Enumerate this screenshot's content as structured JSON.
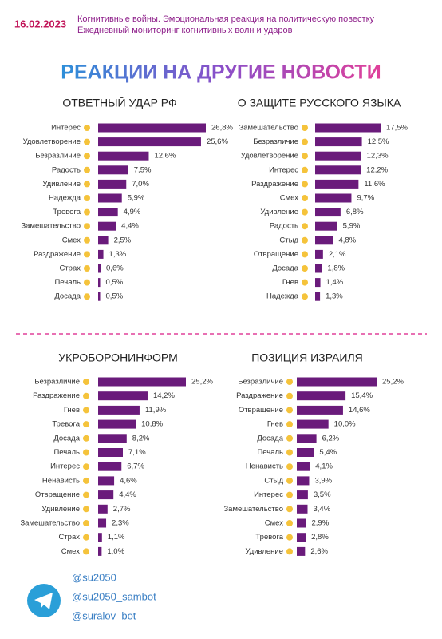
{
  "header": {
    "date": "16.02.2023",
    "lines": [
      "Когнитивные войны. Эмоциональная реакция на политическую повестку",
      "Ежедневный мониторинг когнитивных волн и ударов"
    ]
  },
  "title": "РЕАКЦИИ НА ДРУГИЕ НОВОСТИ",
  "chart_data": [
    {
      "type": "bar",
      "orientation": "horizontal",
      "title": "ОТВЕТНЫЙ УДАР РФ",
      "color": "#6a1b7b",
      "categories": [
        "Интерес",
        "Удовлетворение",
        "Безразличие",
        "Радость",
        "Удивление",
        "Надежда",
        "Тревога",
        "Замешательство",
        "Смех",
        "Раздражение",
        "Страх",
        "Печаль",
        "Досада"
      ],
      "values": [
        26.8,
        25.6,
        12.6,
        7.5,
        7.0,
        5.9,
        4.9,
        4.4,
        2.5,
        1.3,
        0.6,
        0.5,
        0.5
      ],
      "value_labels": [
        "26,8%",
        "25,6%",
        "12,6%",
        "7,5%",
        "7,0%",
        "5,9%",
        "4,9%",
        "4,4%",
        "2,5%",
        "1,3%",
        "0,6%",
        "0,5%",
        "0,5%"
      ]
    },
    {
      "type": "bar",
      "orientation": "horizontal",
      "title": "О ЗАЩИТЕ РУССКОГО ЯЗЫКА",
      "color": "#6a1b7b",
      "categories": [
        "Замешательство",
        "Безразличие",
        "Удовлетворение",
        "Интерес",
        "Раздражение",
        "Смех",
        "Удивление",
        "Радость",
        "Стыд",
        "Отвращение",
        "Досада",
        "Гнев",
        "Надежда"
      ],
      "values": [
        17.5,
        12.5,
        12.3,
        12.2,
        11.6,
        9.7,
        6.8,
        5.9,
        4.8,
        2.1,
        1.8,
        1.4,
        1.3
      ],
      "value_labels": [
        "17,5%",
        "12,5%",
        "12,3%",
        "12,2%",
        "11,6%",
        "9,7%",
        "6,8%",
        "5,9%",
        "4,8%",
        "2,1%",
        "1,8%",
        "1,4%",
        "1,3%"
      ]
    },
    {
      "type": "bar",
      "orientation": "horizontal",
      "title": "УКРОБОРОНИНФОРМ",
      "color": "#6a1b7b",
      "categories": [
        "Безразличие",
        "Раздражение",
        "Гнев",
        "Тревога",
        "Досада",
        "Печаль",
        "Интерес",
        "Ненависть",
        "Отвращение",
        "Удивление",
        "Замешательство",
        "Страх",
        "Смех"
      ],
      "values": [
        25.2,
        14.2,
        11.9,
        10.8,
        8.2,
        7.1,
        6.7,
        4.6,
        4.4,
        2.7,
        2.3,
        1.1,
        1.0
      ],
      "value_labels": [
        "25,2%",
        "14,2%",
        "11,9%",
        "10,8%",
        "8,2%",
        "7,1%",
        "6,7%",
        "4,6%",
        "4,4%",
        "2,7%",
        "2,3%",
        "1,1%",
        "1,0%"
      ]
    },
    {
      "type": "bar",
      "orientation": "horizontal",
      "title": "ПОЗИЦИЯ ИЗРАИЛЯ",
      "color": "#6a1b7b",
      "categories": [
        "Безразличие",
        "Раздражение",
        "Отвращение",
        "Гнев",
        "Досада",
        "Печаль",
        "Ненависть",
        "Стыд",
        "Интерес",
        "Замешательство",
        "Смех",
        "Тревога",
        "Удивление"
      ],
      "values": [
        25.2,
        15.4,
        14.6,
        10.0,
        6.2,
        5.4,
        4.1,
        3.9,
        3.5,
        3.4,
        2.9,
        2.8,
        2.6
      ],
      "value_labels": [
        "25,2%",
        "15,4%",
        "14,6%",
        "10,0%",
        "6,2%",
        "5,4%",
        "4,1%",
        "3,9%",
        "3,5%",
        "3,4%",
        "2,9%",
        "2,8%",
        "2,6%"
      ]
    }
  ],
  "footer": {
    "handles": [
      "@su2050",
      "@su2050_sambot",
      "@suralov_bot"
    ]
  }
}
